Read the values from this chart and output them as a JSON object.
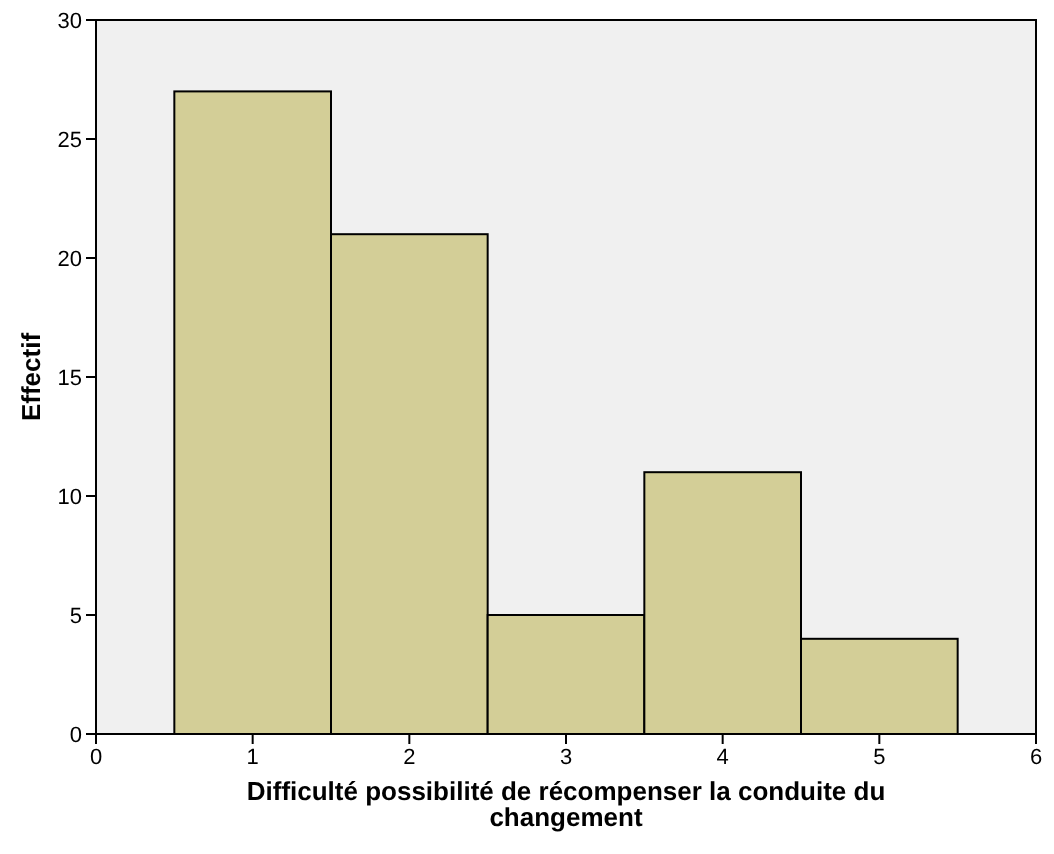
{
  "chart_data": {
    "type": "histogram",
    "xlabel": "Difficulté possibilité de récompenser la conduite du changement",
    "ylabel": "Effectif",
    "bins": [
      0.5,
      1.5,
      2.5,
      3.5,
      4.5,
      5.5
    ],
    "values": [
      27,
      21,
      5,
      11,
      4
    ],
    "color": "#d3ce97",
    "xlim": [
      0,
      6
    ],
    "xticks": [
      0,
      1,
      2,
      3,
      4,
      5,
      6
    ],
    "ylim": [
      0,
      30
    ],
    "yticks": [
      0,
      5,
      10,
      15,
      20,
      25,
      30
    ],
    "grid": false
  }
}
